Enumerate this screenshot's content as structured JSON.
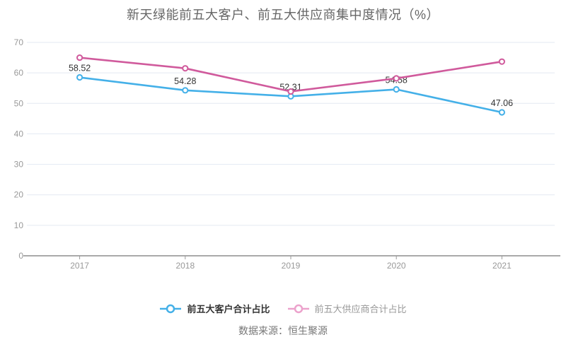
{
  "title": "新天绿能前五大客户、前五大供应商集中度情况（%）",
  "source_text": "数据来源：恒生聚源",
  "colors": {
    "customer_line": "#44b0e8",
    "supplier_line": "#d05a9c",
    "legend_supplier_inactive": "#eca2cc",
    "grid_line": "#e3e9f2",
    "axis_line": "#555555",
    "tick_line": "#999999",
    "axis_label": "#999999",
    "data_label": "#333333",
    "title_text": "#666666",
    "source_text_color": "#777777"
  },
  "legend": {
    "items": [
      {
        "label": "前五大客户合计占比",
        "icon_color": "#44b0e8"
      },
      {
        "label": "前五大供应商合计占比",
        "icon_color": "#eca2cc"
      }
    ]
  },
  "chart_data": {
    "type": "line",
    "title": "新天绿能前五大客户、前五大供应商集中度情况（%）",
    "categories": [
      "2017",
      "2018",
      "2019",
      "2020",
      "2021"
    ],
    "series": [
      {
        "name": "前五大客户合计占比",
        "color": "#44b0e8",
        "values": [
          58.52,
          54.28,
          52.31,
          54.58,
          47.06
        ],
        "labels": [
          "58.52",
          "54.28",
          "52.31",
          "54.58",
          "47.06"
        ],
        "show_labels": true
      },
      {
        "name": "前五大供应商合计占比",
        "color": "#d05a9c",
        "values": [
          65.0,
          61.5,
          53.9,
          58.2,
          63.7
        ],
        "labels": [],
        "show_labels": false,
        "values_estimated_from_pixels": true
      }
    ],
    "xlabel": "",
    "ylabel": "",
    "ylim": [
      0,
      70
    ],
    "y_tick_step": 10,
    "grid": true,
    "legend_position": "bottom",
    "marker": "hollow-circle"
  }
}
